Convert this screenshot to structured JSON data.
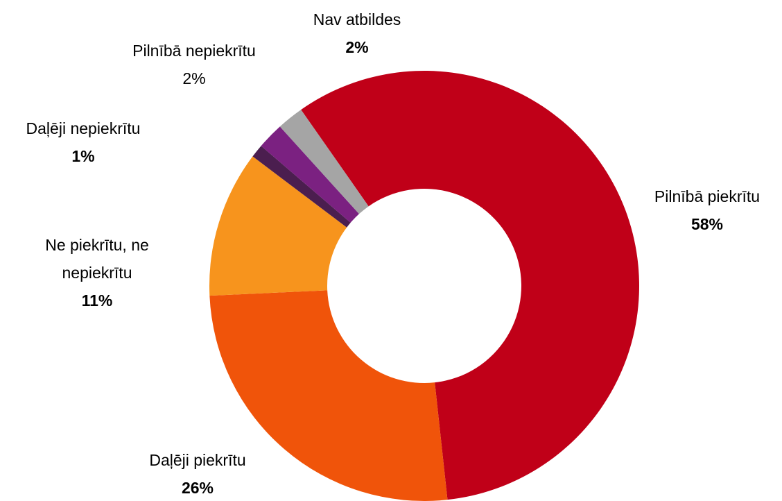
{
  "chart_data": {
    "type": "donut",
    "categories": [
      "Pilnībā piekrītu",
      "Daļēji piekrītu",
      "Ne piekrītu, ne nepiekrītu",
      "Daļēji nepiekrītu",
      "Pilnībā nepiekrītu",
      "Nav atbildes"
    ],
    "values": [
      58,
      26,
      11,
      1,
      2,
      2
    ],
    "value_labels": [
      "58%",
      "26%",
      "11%",
      "1%",
      "2%",
      "2%"
    ],
    "colors": [
      "#c00018",
      "#f0540a",
      "#f7941d",
      "#4b1e4f",
      "#7b2181",
      "#a5a5a5"
    ]
  }
}
